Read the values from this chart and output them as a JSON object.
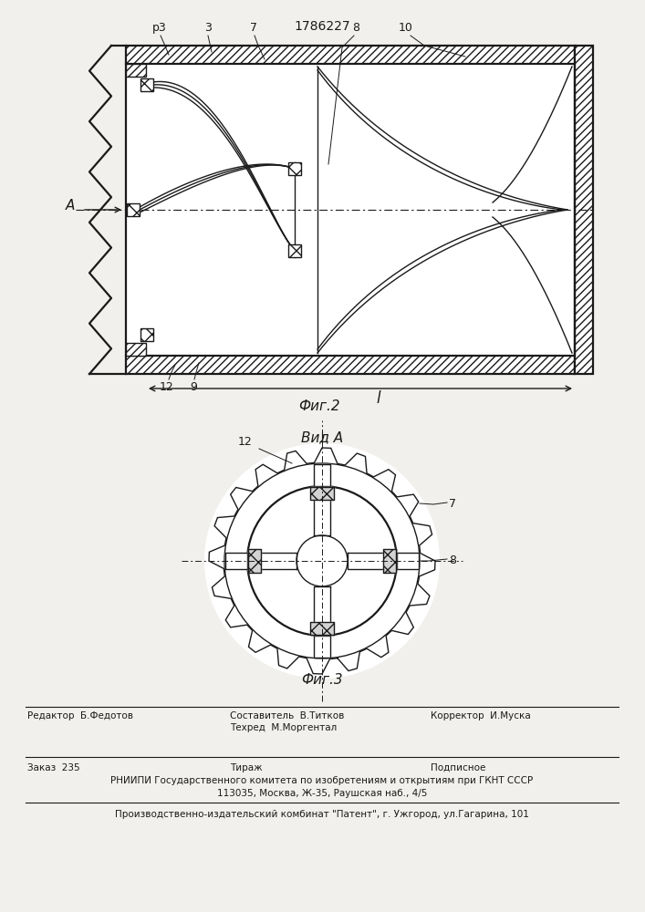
{
  "patent_number": "1786227",
  "fig2_title": "Фиг.2",
  "fig3_title": "Фиг.3",
  "vid_a_title": "Вид A",
  "bg_color": "#f2f0ec",
  "line_color": "#1a1a1a",
  "footer_rniip": "РНИИПИ Государственного комитета по изобретениям и открытиям при ГКНТ СССР",
  "footer_address": "113035, Москва, Ж-35, Раушская наб., 4/5",
  "footer_patent": "Производственно-издательский комбинат \"Патент\", г. Ужгород, ул.Гагарина, 101"
}
